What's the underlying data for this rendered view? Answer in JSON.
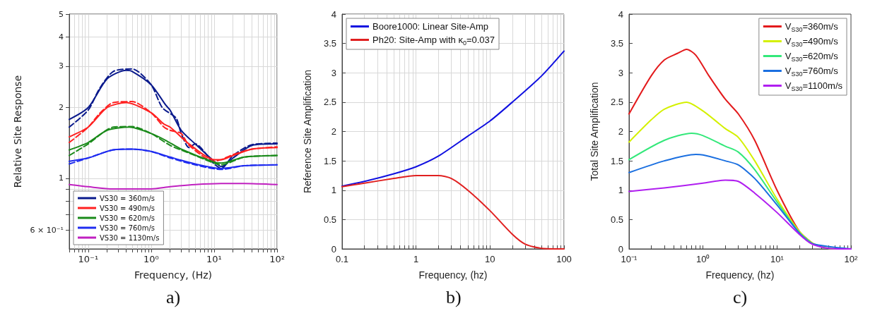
{
  "chart_data": [
    {
      "type": "line",
      "xlabel": "Frequency, (Hz)",
      "ylabel": "Relative Site Response",
      "log": "xy",
      "xlim": [
        0.05,
        100
      ],
      "ylim": [
        0.5,
        5
      ],
      "xticks": [
        {
          "value": 0.05,
          "label": null
        },
        {
          "value": 0.06,
          "label": null
        },
        {
          "value": 0.07,
          "label": null
        },
        {
          "value": 0.08,
          "label": null
        },
        {
          "value": 0.09,
          "label": null
        },
        {
          "value": 0.1,
          "label": "10⁻¹"
        },
        {
          "value": 0.2,
          "label": null
        },
        {
          "value": 0.3,
          "label": null
        },
        {
          "value": 0.4,
          "label": null
        },
        {
          "value": 0.5,
          "label": null
        },
        {
          "value": 0.6,
          "label": null
        },
        {
          "value": 0.7,
          "label": null
        },
        {
          "value": 0.8,
          "label": null
        },
        {
          "value": 0.9,
          "label": null
        },
        {
          "value": 1,
          "label": "10⁰"
        },
        {
          "value": 2,
          "label": null
        },
        {
          "value": 3,
          "label": null
        },
        {
          "value": 4,
          "label": null
        },
        {
          "value": 5,
          "label": null
        },
        {
          "value": 6,
          "label": null
        },
        {
          "value": 7,
          "label": null
        },
        {
          "value": 8,
          "label": null
        },
        {
          "value": 9,
          "label": null
        },
        {
          "value": 10,
          "label": "10¹"
        },
        {
          "value": 20,
          "label": null
        },
        {
          "value": 30,
          "label": null
        },
        {
          "value": 40,
          "label": null
        },
        {
          "value": 50,
          "label": null
        },
        {
          "value": 60,
          "label": null
        },
        {
          "value": 70,
          "label": null
        },
        {
          "value": 80,
          "label": null
        },
        {
          "value": 90,
          "label": null
        },
        {
          "value": 100,
          "label": "10²"
        }
      ],
      "yticks": [
        {
          "value": 0.6,
          "label": "6 × 10⁻¹"
        },
        {
          "value": 0.7,
          "label": null
        },
        {
          "value": 0.8,
          "label": null
        },
        {
          "value": 0.9,
          "label": null
        },
        1,
        2,
        3,
        4,
        5
      ],
      "grid": true,
      "legend": "bottom left",
      "line_style": "solid",
      "annotations": [
        "a)"
      ],
      "series": [
        {
          "name": "VS30 = 360m/s",
          "color": "#0a1a8c",
          "x": [
            0.05,
            0.1,
            0.2,
            0.4,
            0.5,
            1,
            1.7,
            2,
            3,
            5,
            10,
            13,
            20,
            40,
            100
          ],
          "values": [
            1.78,
            2.0,
            2.65,
            2.88,
            2.85,
            2.5,
            2.05,
            1.95,
            1.6,
            1.4,
            1.18,
            1.12,
            1.22,
            1.38,
            1.4
          ]
        },
        {
          "color": "#0a1a8c",
          "line_style": "dashed",
          "x": [
            0.05,
            0.1,
            0.15,
            0.25,
            0.5,
            1,
            1.5,
            2.5,
            3,
            4,
            5,
            10,
            13,
            20,
            40,
            100
          ],
          "values": [
            1.65,
            1.95,
            2.4,
            2.85,
            2.92,
            2.5,
            2.0,
            1.8,
            1.55,
            1.35,
            1.4,
            1.15,
            1.1,
            1.25,
            1.39,
            1.41
          ]
        },
        {
          "name": "VS30 = 490m/s",
          "color": "#ff2020",
          "x": [
            0.05,
            0.1,
            0.2,
            0.4,
            1,
            1.6,
            2,
            4,
            10,
            13,
            20,
            40,
            100
          ],
          "values": [
            1.5,
            1.65,
            2.0,
            2.1,
            1.9,
            1.7,
            1.65,
            1.4,
            1.2,
            1.2,
            1.25,
            1.33,
            1.35
          ]
        },
        {
          "color": "#ff2020",
          "line_style": "dashed",
          "x": [
            0.05,
            0.1,
            0.15,
            0.25,
            0.5,
            1,
            1.6,
            2,
            3,
            4,
            10,
            13,
            20,
            40,
            100
          ],
          "values": [
            1.42,
            1.65,
            1.88,
            2.1,
            2.12,
            1.9,
            1.65,
            1.6,
            1.55,
            1.38,
            1.18,
            1.2,
            1.26,
            1.33,
            1.36
          ]
        },
        {
          "name": "VS30 = 620m/s",
          "color": "#1a8a1a",
          "x": [
            0.05,
            0.1,
            0.2,
            0.45,
            1,
            1.7,
            3,
            10,
            13,
            30,
            100
          ],
          "values": [
            1.32,
            1.42,
            1.6,
            1.65,
            1.55,
            1.45,
            1.33,
            1.17,
            1.16,
            1.23,
            1.25
          ]
        },
        {
          "color": "#1a8a1a",
          "line_style": "dashed",
          "x": [
            0.05,
            0.1,
            0.25,
            0.5,
            1,
            2,
            4,
            10,
            13,
            30,
            100
          ],
          "values": [
            1.25,
            1.4,
            1.65,
            1.66,
            1.55,
            1.38,
            1.28,
            1.16,
            1.14,
            1.23,
            1.25
          ]
        },
        {
          "name": "VS30 = 760m/s",
          "color": "#1f2cf0",
          "x": [
            0.05,
            0.1,
            0.25,
            0.5,
            1,
            2,
            5,
            13,
            30,
            100
          ],
          "values": [
            1.18,
            1.22,
            1.32,
            1.33,
            1.3,
            1.23,
            1.15,
            1.1,
            1.13,
            1.14
          ]
        },
        {
          "color": "#1f2cf0",
          "line_style": "dashed",
          "x": [
            0.05,
            0.1,
            0.25,
            0.5,
            1,
            2,
            5,
            13,
            30,
            100
          ],
          "values": [
            1.15,
            1.22,
            1.32,
            1.33,
            1.3,
            1.22,
            1.14,
            1.09,
            1.13,
            1.14
          ]
        },
        {
          "name": "VS30 = 1130m/s",
          "color": "#c020c0",
          "x": [
            0.05,
            0.1,
            0.25,
            0.5,
            1,
            2,
            5,
            13,
            30,
            100
          ],
          "values": [
            0.94,
            0.92,
            0.9,
            0.9,
            0.9,
            0.92,
            0.94,
            0.95,
            0.95,
            0.94
          ]
        }
      ]
    },
    {
      "type": "line",
      "xlabel": "Frequency, (hz)",
      "ylabel": "Reference Site Amplification",
      "log": "x",
      "xlim": [
        0.1,
        100
      ],
      "ylim": [
        0,
        4
      ],
      "xticks": [
        0.1,
        {
          "value": 0.2,
          "label": null
        },
        {
          "value": 0.3,
          "label": null
        },
        {
          "value": 0.4,
          "label": null
        },
        {
          "value": 0.5,
          "label": null
        },
        {
          "value": 0.6,
          "label": null
        },
        {
          "value": 0.7,
          "label": null
        },
        {
          "value": 0.8,
          "label": null
        },
        {
          "value": 0.9,
          "label": null
        },
        1,
        {
          "value": 2,
          "label": null
        },
        {
          "value": 3,
          "label": null
        },
        {
          "value": 4,
          "label": null
        },
        {
          "value": 5,
          "label": null
        },
        {
          "value": 6,
          "label": null
        },
        {
          "value": 7,
          "label": null
        },
        {
          "value": 8,
          "label": null
        },
        {
          "value": 9,
          "label": null
        },
        10,
        {
          "value": 20,
          "label": null
        },
        {
          "value": 30,
          "label": null
        },
        {
          "value": 40,
          "label": null
        },
        {
          "value": 50,
          "label": null
        },
        {
          "value": 60,
          "label": null
        },
        {
          "value": 70,
          "label": null
        },
        {
          "value": 80,
          "label": null
        },
        {
          "value": 90,
          "label": null
        },
        100
      ],
      "yticks": [
        0,
        0.5,
        1,
        1.5,
        2,
        2.5,
        3,
        3.5,
        4
      ],
      "grid": true,
      "legend": "top left",
      "line_style": "solid",
      "annotations": [
        "b)"
      ],
      "series": [
        {
          "name": "Boore1000: Linear Site-Amp",
          "color": "#1010e0",
          "x": [
            0.1,
            0.2,
            0.5,
            1,
            2,
            5,
            10,
            20,
            50,
            100
          ],
          "values": [
            1.07,
            1.15,
            1.28,
            1.4,
            1.58,
            1.92,
            2.18,
            2.5,
            2.95,
            3.37
          ]
        },
        {
          "name": "Ph20: Site-Amp with κ$_{0}$=0.037",
          "color": "#e02020",
          "x": [
            0.1,
            0.2,
            0.5,
            1,
            2,
            3,
            5,
            10,
            20,
            30,
            50,
            100
          ],
          "values": [
            1.06,
            1.12,
            1.2,
            1.25,
            1.25,
            1.2,
            1.0,
            0.65,
            0.25,
            0.08,
            0.01,
            0.0
          ]
        }
      ]
    },
    {
      "type": "line",
      "xlabel": "Frequency, (hz)",
      "ylabel": "Total Site Amplification",
      "log": "x",
      "xlim": [
        0.1,
        100
      ],
      "ylim": [
        0,
        4
      ],
      "xticks": [
        {
          "value": 0.1,
          "label": "10⁻¹"
        },
        {
          "value": 0.2,
          "label": null
        },
        {
          "value": 0.3,
          "label": null
        },
        {
          "value": 0.4,
          "label": null
        },
        {
          "value": 0.5,
          "label": null
        },
        {
          "value": 0.6,
          "label": null
        },
        {
          "value": 0.7,
          "label": null
        },
        {
          "value": 0.8,
          "label": null
        },
        {
          "value": 0.9,
          "label": null
        },
        {
          "value": 1,
          "label": "10⁰"
        },
        {
          "value": 2,
          "label": null
        },
        {
          "value": 3,
          "label": null
        },
        {
          "value": 4,
          "label": null
        },
        {
          "value": 5,
          "label": null
        },
        {
          "value": 6,
          "label": null
        },
        {
          "value": 7,
          "label": null
        },
        {
          "value": 8,
          "label": null
        },
        {
          "value": 9,
          "label": null
        },
        {
          "value": 10,
          "label": "10¹"
        },
        {
          "value": 20,
          "label": null
        },
        {
          "value": 30,
          "label": null
        },
        {
          "value": 40,
          "label": null
        },
        {
          "value": 50,
          "label": null
        },
        {
          "value": 60,
          "label": null
        },
        {
          "value": 70,
          "label": null
        },
        {
          "value": 80,
          "label": null
        },
        {
          "value": 90,
          "label": null
        },
        {
          "value": 100,
          "label": "10²"
        }
      ],
      "yticks": [
        0,
        0.5,
        1,
        1.5,
        2,
        2.5,
        3,
        3.5,
        4
      ],
      "grid": false,
      "legend": "top right",
      "line_style": "solid",
      "annotations": [
        "c)"
      ],
      "series": [
        {
          "name": "V$_{S30}$=360m/s",
          "color": "#e31a1c",
          "x": [
            0.1,
            0.2,
            0.3,
            0.45,
            0.6,
            0.8,
            1.2,
            2,
            3,
            5,
            10,
            20,
            30
          ],
          "values": [
            2.3,
            2.95,
            3.22,
            3.33,
            3.4,
            3.3,
            2.95,
            2.55,
            2.3,
            1.85,
            1.0,
            0.3,
            0.1
          ]
        },
        {
          "name": "V$_{S30}$=490m/s",
          "color": "#d4f000",
          "x": [
            0.1,
            0.2,
            0.3,
            0.6,
            1,
            2,
            3,
            5,
            10,
            20,
            30,
            50,
            100
          ],
          "values": [
            1.82,
            2.2,
            2.38,
            2.5,
            2.35,
            2.05,
            1.9,
            1.5,
            0.85,
            0.3,
            0.1,
            0.01,
            0.0
          ]
        },
        {
          "name": "V$_{S30}$=620m/s",
          "color": "#33e87a",
          "x": [
            0.1,
            0.3,
            0.7,
            1,
            2,
            3,
            5,
            10,
            20,
            30
          ],
          "values": [
            1.52,
            1.85,
            1.97,
            1.93,
            1.75,
            1.65,
            1.35,
            0.8,
            0.28,
            0.09
          ]
        },
        {
          "name": "V$_{S30}$=760m/s",
          "color": "#1a6fe0",
          "x": [
            0.1,
            0.3,
            0.8,
            1,
            2,
            3,
            5,
            10,
            20,
            30,
            100
          ],
          "values": [
            1.3,
            1.5,
            1.61,
            1.6,
            1.5,
            1.43,
            1.2,
            0.75,
            0.27,
            0.09,
            0.0
          ]
        },
        {
          "name": "V$_{S30}$=1100m/s",
          "color": "#b01ef0",
          "x": [
            0.1,
            0.3,
            1,
            2,
            3,
            5,
            10,
            20,
            30,
            50,
            100
          ],
          "values": [
            0.98,
            1.04,
            1.12,
            1.17,
            1.15,
            0.95,
            0.62,
            0.25,
            0.08,
            0.01,
            0.0
          ]
        }
      ]
    }
  ]
}
